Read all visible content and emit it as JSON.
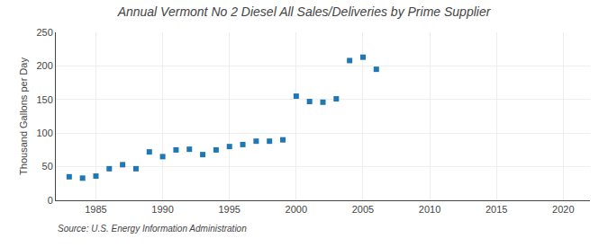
{
  "chart_data": {
    "type": "scatter",
    "title": "Annual Vermont No 2 Diesel All Sales/Deliveries by Prime Supplier",
    "ylabel": "Thousand Gallons per Day",
    "annotations": [
      "Source: U.S. Energy Information Administration"
    ],
    "x": [
      1983,
      1984,
      1985,
      1986,
      1987,
      1988,
      1989,
      1990,
      1991,
      1992,
      1993,
      1994,
      1995,
      1996,
      1997,
      1998,
      1999,
      2000,
      2001,
      2002,
      2003,
      2004,
      2005,
      2006
    ],
    "values": [
      35,
      33,
      36,
      47,
      53,
      47,
      72,
      65,
      75,
      76,
      68,
      75,
      80,
      83,
      88,
      88,
      90,
      155,
      147,
      146,
      151,
      208,
      213,
      195
    ],
    "marker": "square",
    "xlim": [
      1982,
      2022
    ],
    "ylim": [
      0,
      250
    ],
    "xticks": [
      1985,
      1990,
      1995,
      2000,
      2005,
      2010,
      2015,
      2020
    ],
    "yticks": [
      0,
      50,
      100,
      150,
      200,
      250
    ],
    "grid": true
  }
}
